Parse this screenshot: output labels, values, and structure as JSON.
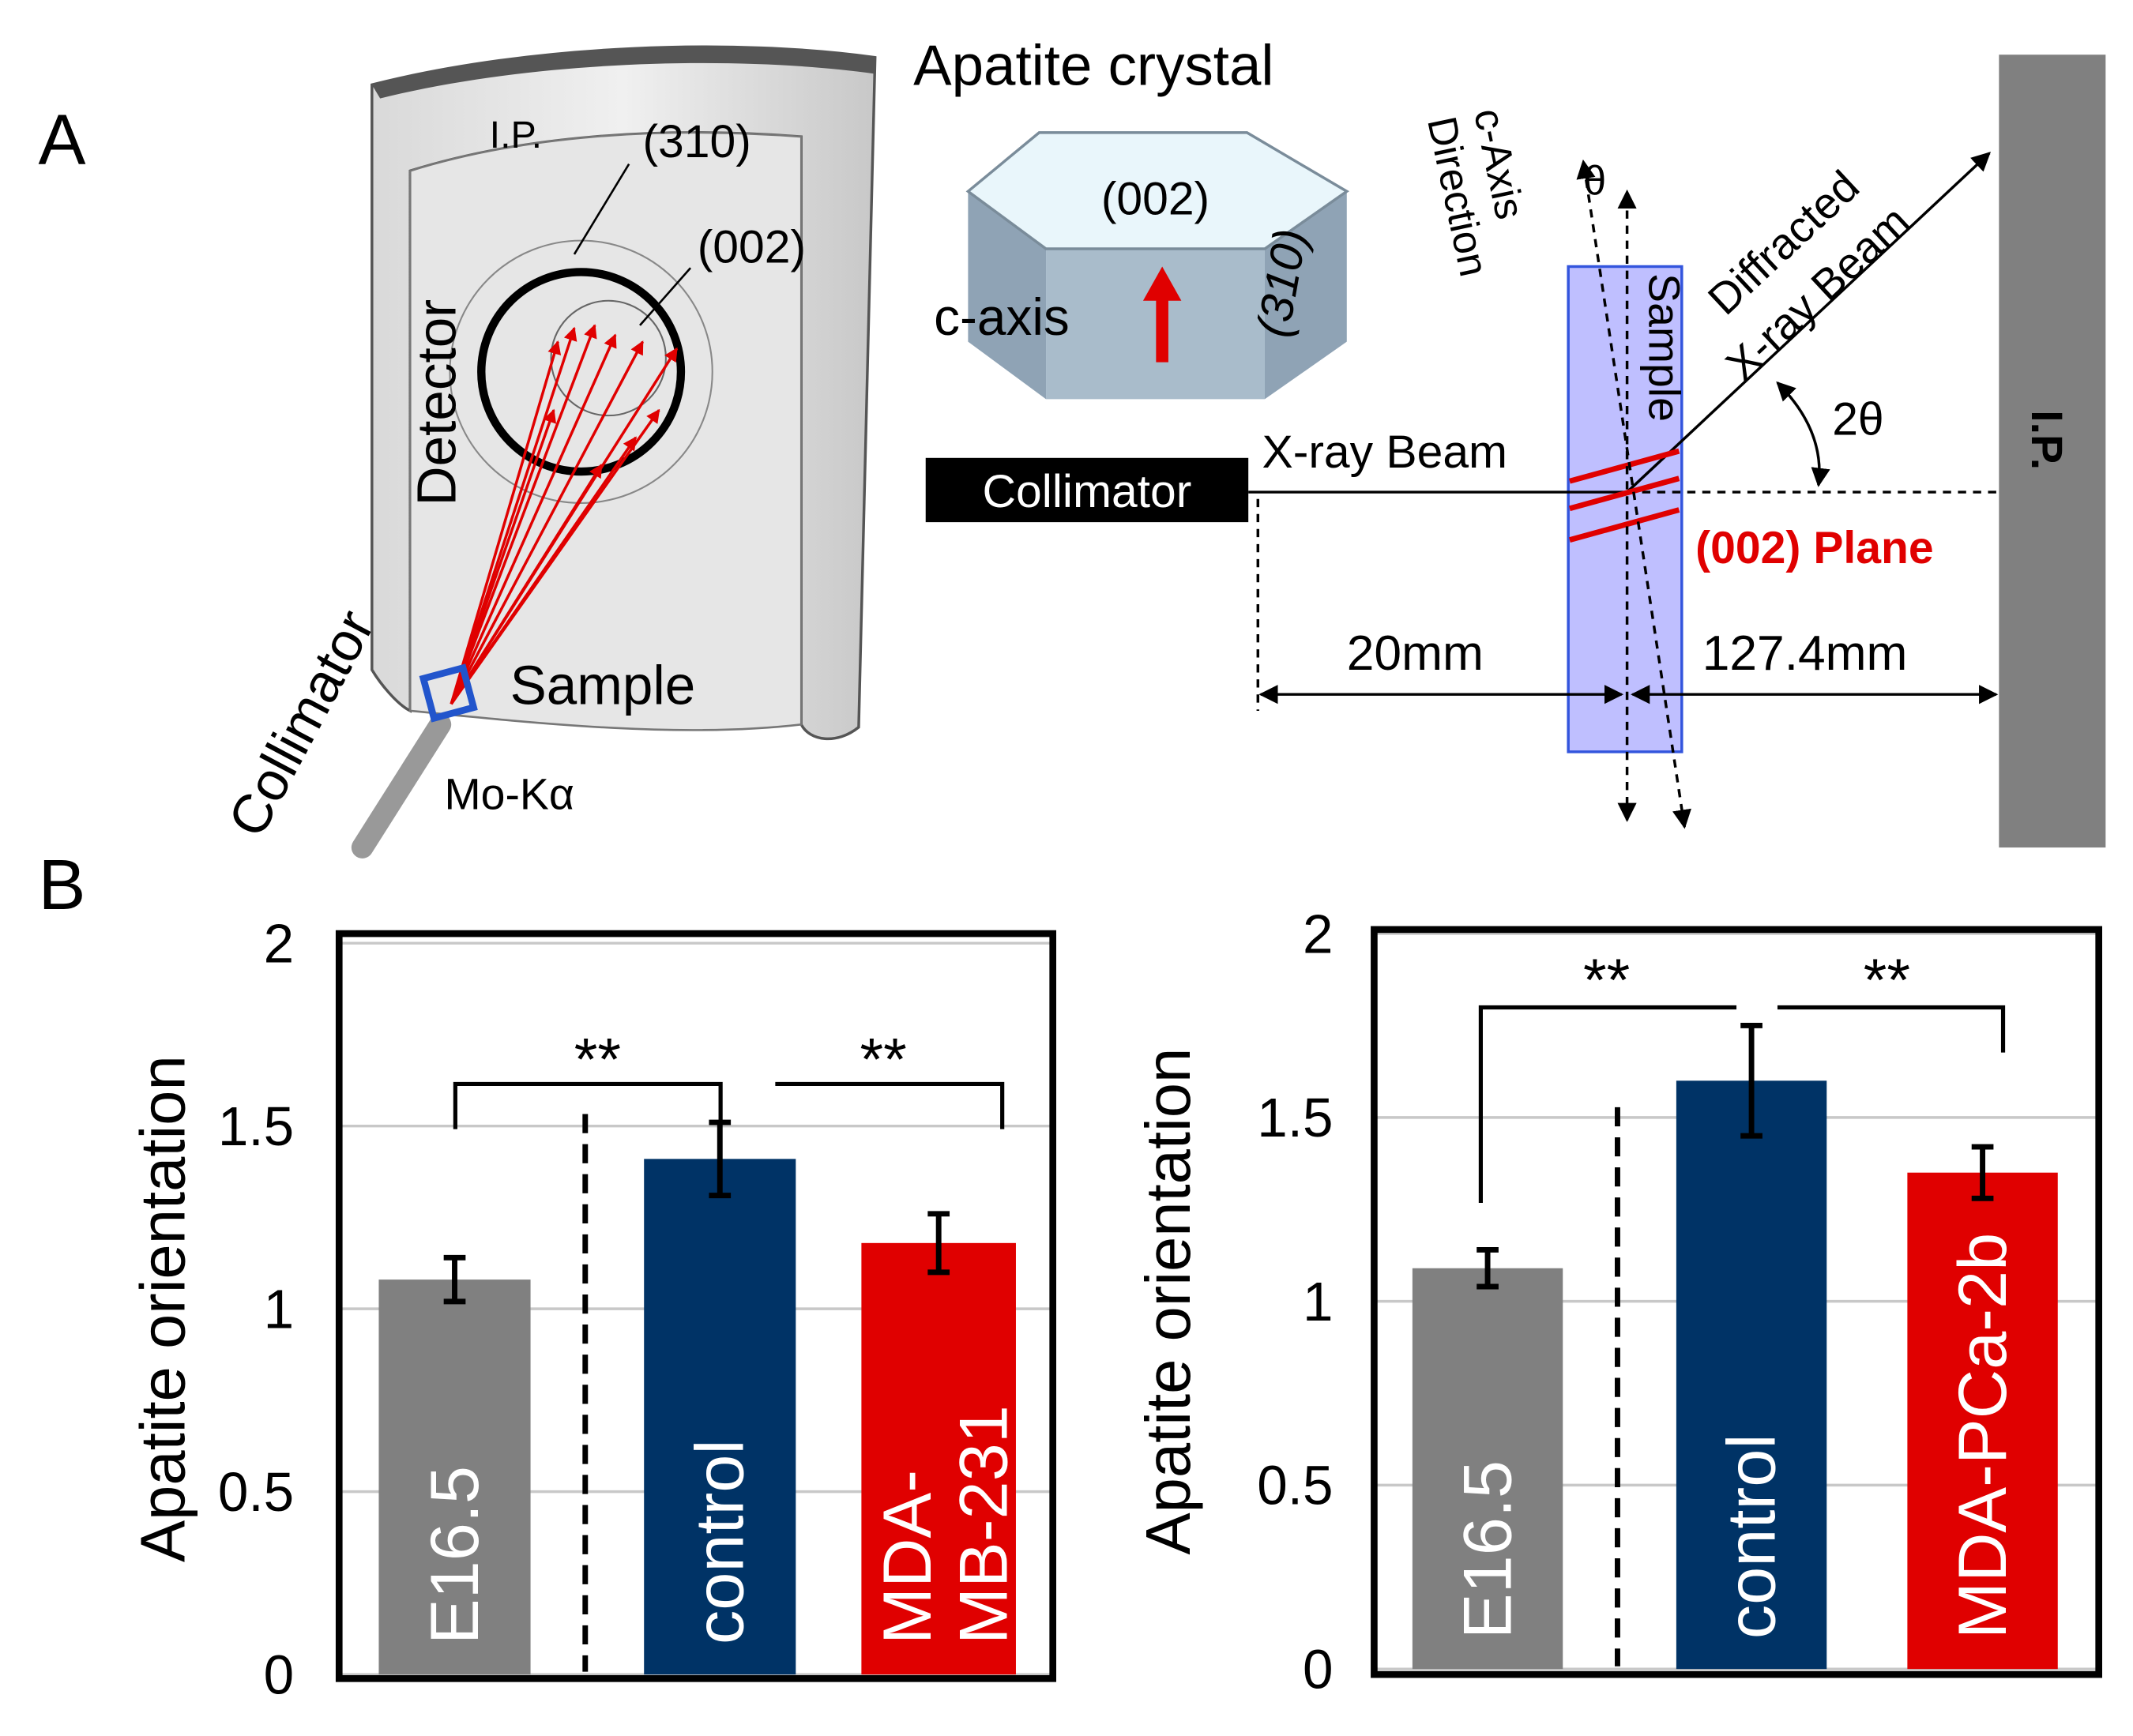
{
  "panel_labels": [
    "A",
    "B"
  ],
  "diagram": {
    "left": {
      "ip": "I.P.",
      "ring_310": "(310)",
      "ring_002": "(002)",
      "detector": "Detector",
      "collimator": "Collimator",
      "sample": "Sample",
      "source": "Mo-Kα"
    },
    "crystal": {
      "title": "Apatite crystal",
      "top_face": "(002)",
      "axis": "c-axis",
      "side_face": "(310)"
    },
    "right": {
      "c_axis": [
        "c-Axis",
        "Direction"
      ],
      "theta": "θ",
      "diffracted": [
        "Diffracted",
        "X-ray Beam"
      ],
      "sample": "Sample",
      "two_theta": "2θ",
      "ip": "I.P.",
      "beam": "X-ray Beam",
      "collimator": "Collimator",
      "plane": "(002) Plane",
      "dist1": "20mm",
      "dist2": "127.4mm"
    }
  },
  "chart_data": [
    {
      "type": "bar",
      "y_label": "Apatite orientation",
      "categories": [
        "E16.5",
        "control",
        "MDA-MB-231"
      ],
      "values": [
        1.08,
        1.41,
        1.18
      ],
      "errors": [
        0.06,
        0.1,
        0.08
      ],
      "colors": [
        "#808080",
        "#003366",
        "#e00000"
      ],
      "ylim": [
        0,
        2
      ],
      "yticks": [
        0,
        0.5,
        1,
        1.5,
        2
      ],
      "grid": true,
      "annotations": [
        "**",
        "**"
      ]
    },
    {
      "type": "bar",
      "y_label": "Apatite orientation",
      "categories": [
        "E16.5",
        "control",
        "MDA-PCa-2b"
      ],
      "values": [
        1.09,
        1.6,
        1.35
      ],
      "errors": [
        0.05,
        0.15,
        0.07
      ],
      "colors": [
        "#808080",
        "#003366",
        "#e00000"
      ],
      "ylim": [
        0,
        2
      ],
      "yticks": [
        0,
        0.5,
        1,
        1.5,
        2
      ],
      "grid": true,
      "annotations": [
        "**",
        "**"
      ]
    }
  ]
}
